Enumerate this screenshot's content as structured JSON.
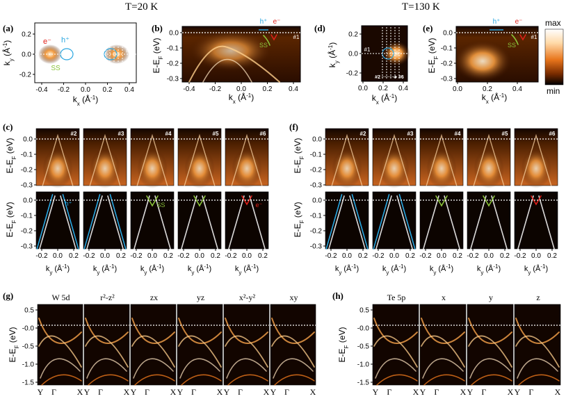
{
  "headers": {
    "left": "T=20 K",
    "right": "T=130 K"
  },
  "panel_labels": [
    "(a)",
    "(b)",
    "(c)",
    "(d)",
    "(e)",
    "(f)",
    "(g)",
    "(h)"
  ],
  "colorbar": {
    "max_label": "max",
    "min_label": "min",
    "colors": [
      "#000000",
      "#7a2c00",
      "#e8751c",
      "#ffd9a8",
      "#ffffff"
    ]
  },
  "axes": {
    "ky_label": "k",
    "ky_sub": "y",
    "kx_sub": "x",
    "k_unit": " (Å",
    "k_unit_exp": "-1",
    "k_unit_close": ")",
    "E_label": "E-E",
    "E_sub": "F",
    "E_unit": " (eV)"
  },
  "fermi_surface": {
    "ky_ticks": [
      "0.2",
      "0.0",
      "-0.2"
    ],
    "kx_ticks_a": [
      "-0.4",
      "-0.2",
      "0.0",
      "0.2",
      "0.4"
    ],
    "kx_ticks_d": [
      "0.0",
      "0.2",
      "0.4"
    ],
    "e_label": "e",
    "h_label": "h",
    "ss_label": "SS",
    "cut_first": "#1",
    "cut_range": "#2 ·······➔ #6"
  },
  "cuts": {
    "E_ticks": [
      "0.0",
      "-0.1",
      "-0.2",
      "-0.3"
    ],
    "kx_ticks_b": [
      "-0.4",
      "-0.2",
      "0.0",
      "0.2",
      "0.4"
    ],
    "kx_ticks_e": [
      "0.0",
      "0.2",
      "0.4"
    ],
    "ky_ticks": [
      "-0.2",
      "0.0",
      "0.2"
    ],
    "labels": [
      "#2",
      "#3",
      "#4",
      "#5",
      "#6"
    ],
    "annot_h": "h⁺",
    "annot_ss": "SS",
    "annot_e": "e⁻",
    "annot_1": "#1"
  },
  "calc_g": {
    "titles": [
      "W 5d",
      "r²-z²",
      "zx",
      "yz",
      "x²-y²",
      "xy"
    ],
    "E_ticks": [
      "0.5",
      "-0.0",
      "-0.5",
      "-1.0",
      "-1.5"
    ],
    "k_labels": [
      "Y",
      "Γ",
      "X"
    ]
  },
  "calc_h": {
    "titles": [
      "Te 5p",
      "x",
      "y",
      "z"
    ],
    "E_ticks": [
      "0.5",
      "-0.0",
      "-0.5",
      "-1.0",
      "-1.5"
    ],
    "k_labels": [
      "Y",
      "Γ",
      "X"
    ]
  }
}
